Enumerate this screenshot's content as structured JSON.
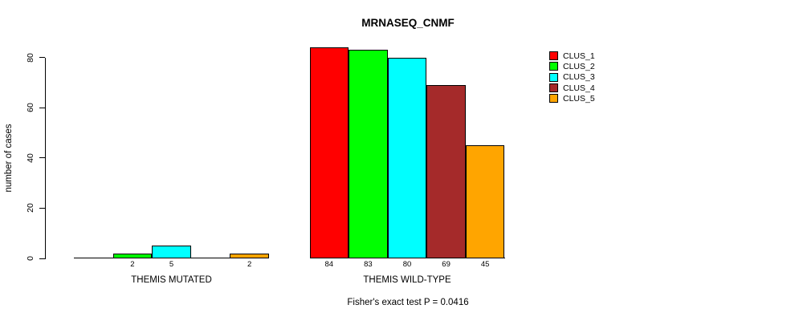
{
  "chart_data": {
    "type": "bar",
    "title": "MRNASEQ_CNMF",
    "ylabel": "number of cases",
    "xlabel": "",
    "ylim": [
      0,
      84
    ],
    "yticks": [
      0,
      20,
      40,
      60,
      80
    ],
    "grid": false,
    "legend_position": "top-right",
    "categories": [
      "THEMIS MUTATED",
      "THEMIS WILD-TYPE"
    ],
    "series": [
      {
        "name": "CLUS_1",
        "color": "#ff0000",
        "values": [
          0,
          84
        ]
      },
      {
        "name": "CLUS_2",
        "color": "#00ff00",
        "values": [
          2,
          83
        ]
      },
      {
        "name": "CLUS_3",
        "color": "#00ffff",
        "values": [
          5,
          80
        ]
      },
      {
        "name": "CLUS_4",
        "color": "#a52a2a",
        "values": [
          0,
          69
        ]
      },
      {
        "name": "CLUS_5",
        "color": "#ffa500",
        "values": [
          2,
          45
        ]
      }
    ],
    "bar_labels": [
      [
        "",
        "2",
        "5",
        "",
        "2"
      ],
      [
        "84",
        "83",
        "80",
        "69",
        "45"
      ]
    ],
    "annotation": "Fisher's exact test P = 0.0416"
  }
}
